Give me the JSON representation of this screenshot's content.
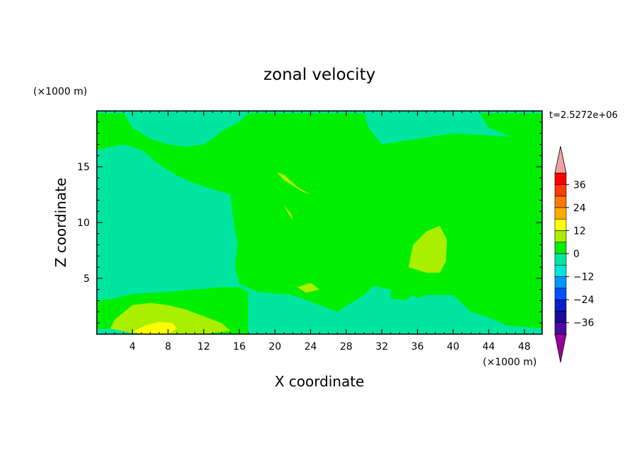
{
  "chart_data": {
    "type": "heatmap",
    "title": "zonal velocity",
    "xlabel": "X coordinate",
    "ylabel": "Z coordinate",
    "x_unit": "(×1000 m)",
    "y_unit": "(×1000 m)",
    "time_label": "t=2.5272e+06",
    "xlim": [
      0,
      50
    ],
    "ylim": [
      0,
      20
    ],
    "x_ticks": [
      4,
      8,
      12,
      16,
      20,
      24,
      28,
      32,
      36,
      40,
      44,
      48
    ],
    "y_ticks": [
      5,
      10,
      15
    ],
    "colorbar": {
      "levels": [
        -42,
        -36,
        -30,
        -24,
        -18,
        -12,
        -6,
        0,
        6,
        12,
        18,
        24,
        30,
        36,
        42
      ],
      "labeled_ticks": [
        36,
        24,
        12,
        0,
        -12,
        -24,
        -36
      ],
      "colors": [
        "#990099",
        "#4b0aa0",
        "#1a0a9c",
        "#0a1ec8",
        "#0050ff",
        "#0096ff",
        "#00e6dc",
        "#00e6a0",
        "#00ee00",
        "#aaee00",
        "#ffff00",
        "#ffaa00",
        "#ff7800",
        "#ff3c00",
        "#ff0000",
        "#f5a0a0"
      ],
      "over_color": "#f5a0a0",
      "under_color": "#990099"
    },
    "regions": [
      {
        "value": 1,
        "label": "0 to 6",
        "points": [
          [
            17,
            19.8
          ],
          [
            30,
            19.8
          ],
          [
            30.5,
            18.5
          ],
          [
            32,
            17
          ],
          [
            40,
            18
          ],
          [
            50,
            17.5
          ],
          [
            50,
            0.5
          ],
          [
            46,
            0.8
          ],
          [
            44,
            1.5
          ],
          [
            42,
            2
          ],
          [
            40,
            3.5
          ],
          [
            37,
            3.5
          ],
          [
            35,
            3
          ],
          [
            33,
            3.2
          ],
          [
            33,
            4
          ],
          [
            31,
            4.3
          ],
          [
            30,
            3.5
          ],
          [
            28,
            2.5
          ],
          [
            27,
            2
          ],
          [
            25,
            2.6
          ],
          [
            22,
            3.5
          ],
          [
            18,
            3.8
          ],
          [
            16,
            4.5
          ],
          [
            15.5,
            6
          ],
          [
            15.8,
            8
          ],
          [
            15.2,
            11
          ],
          [
            15,
            12.5
          ],
          [
            13,
            13
          ],
          [
            11,
            13.5
          ],
          [
            9,
            14.2
          ],
          [
            7,
            15.2
          ],
          [
            5,
            16.5
          ],
          [
            3,
            17
          ],
          [
            0,
            16.5
          ],
          [
            0,
            19.8
          ],
          [
            3,
            19.8
          ],
          [
            4,
            18.5
          ],
          [
            6,
            17.5
          ],
          [
            8,
            17
          ],
          [
            10,
            16.8
          ],
          [
            12,
            17
          ],
          [
            13,
            17.5
          ],
          [
            14,
            18.2
          ],
          [
            15,
            18.6
          ],
          [
            16,
            19
          ]
        ]
      },
      {
        "value": 1,
        "label": "0 to 6",
        "points": [
          [
            43,
            19.8
          ],
          [
            50,
            19.8
          ],
          [
            50,
            17
          ],
          [
            47,
            17.5
          ],
          [
            44,
            18.5
          ]
        ]
      },
      {
        "value": 1,
        "label": "0 to 6",
        "points": [
          [
            0,
            3
          ],
          [
            2,
            3.2
          ],
          [
            4,
            3.6
          ],
          [
            8,
            3.8
          ],
          [
            11,
            4
          ],
          [
            14,
            4.2
          ],
          [
            16,
            4.2
          ],
          [
            17,
            3.8
          ],
          [
            17,
            0
          ],
          [
            13,
            0
          ],
          [
            12,
            1.5
          ],
          [
            10,
            2
          ],
          [
            8,
            2
          ],
          [
            5,
            1.5
          ],
          [
            3,
            1.2
          ],
          [
            2,
            0.6
          ],
          [
            0,
            0.4
          ]
        ]
      },
      {
        "value": 2,
        "label": "6 to 12",
        "points": [
          [
            35,
            6
          ],
          [
            35.5,
            8
          ],
          [
            37,
            9.2
          ],
          [
            38.5,
            9.7
          ],
          [
            39.3,
            8.5
          ],
          [
            39.2,
            6.5
          ],
          [
            38.5,
            5.5
          ],
          [
            37,
            5.5
          ]
        ]
      },
      {
        "value": 2,
        "label": "6 to 12",
        "points": [
          [
            20.2,
            14.5
          ],
          [
            21,
            14.3
          ],
          [
            22.5,
            13.2
          ],
          [
            24,
            12.5
          ],
          [
            23,
            12.8
          ],
          [
            21,
            13.8
          ]
        ]
      },
      {
        "value": 2,
        "label": "6 to 12",
        "points": [
          [
            21,
            11.6
          ],
          [
            21.5,
            10.8
          ],
          [
            22,
            10.2
          ],
          [
            21.8,
            10.8
          ]
        ]
      },
      {
        "value": 2,
        "label": "6 to 12",
        "points": [
          [
            22.5,
            4.2
          ],
          [
            24,
            4.6
          ],
          [
            25,
            4
          ],
          [
            23.5,
            3.7
          ]
        ]
      },
      {
        "value": 2,
        "label": "6 to 12",
        "points": [
          [
            1.5,
            0.5
          ],
          [
            2,
            1.3
          ],
          [
            4,
            2.6
          ],
          [
            6,
            2.8
          ],
          [
            8,
            2.6
          ],
          [
            10,
            2.2
          ],
          [
            12,
            1.6
          ],
          [
            14,
            1
          ],
          [
            15,
            0.3
          ],
          [
            12,
            0
          ],
          [
            8,
            0
          ],
          [
            4,
            0.1
          ]
        ]
      },
      {
        "value": 3,
        "label": "12 to 18",
        "points": [
          [
            4,
            0.2
          ],
          [
            5.5,
            0.8
          ],
          [
            7,
            1.1
          ],
          [
            8.5,
            1
          ],
          [
            9,
            0.5
          ],
          [
            8,
            0
          ],
          [
            5,
            0
          ]
        ]
      },
      {
        "value": -1,
        "label": "-6 to 0",
        "points": [
          [
            3,
            11
          ],
          [
            4.2,
            12.5
          ],
          [
            6,
            13.2
          ],
          [
            8,
            13.3
          ],
          [
            10,
            12.8
          ],
          [
            11.5,
            11.4
          ],
          [
            12,
            10
          ],
          [
            13.5,
            9.2
          ],
          [
            14.5,
            8.5
          ],
          [
            14,
            7.5
          ],
          [
            12,
            6.8
          ],
          [
            10,
            6.5
          ],
          [
            8,
            6.8
          ],
          [
            6,
            7.2
          ],
          [
            4,
            8.5
          ],
          [
            2.6,
            9.8
          ]
        ]
      },
      {
        "value": -1,
        "label": "-6 to 0",
        "points": [
          [
            8.8,
            4.6
          ],
          [
            9.8,
            5.1
          ],
          [
            11.2,
            4.8
          ],
          [
            10.2,
            4.4
          ]
        ]
      },
      {
        "value": -1,
        "label": "-6 to 0",
        "points": [
          [
            22,
            0
          ],
          [
            23,
            0.6
          ],
          [
            24,
            0.9
          ],
          [
            25,
            0.5
          ],
          [
            26,
            0.8
          ],
          [
            27,
            0.9
          ],
          [
            28,
            0.3
          ],
          [
            30,
            0.5
          ],
          [
            32,
            0
          ],
          [
            22,
            0
          ]
        ]
      },
      {
        "value": -1,
        "label": "-6 to 0",
        "points": [
          [
            34.5,
            3
          ],
          [
            35.5,
            3.5
          ],
          [
            36.5,
            3
          ],
          [
            38,
            2.5
          ],
          [
            40,
            2
          ],
          [
            41.5,
            1
          ],
          [
            41,
            0.2
          ],
          [
            38,
            0.5
          ],
          [
            36.5,
            0.2
          ],
          [
            35.5,
            1
          ],
          [
            34.7,
            1.6
          ]
        ]
      }
    ]
  }
}
